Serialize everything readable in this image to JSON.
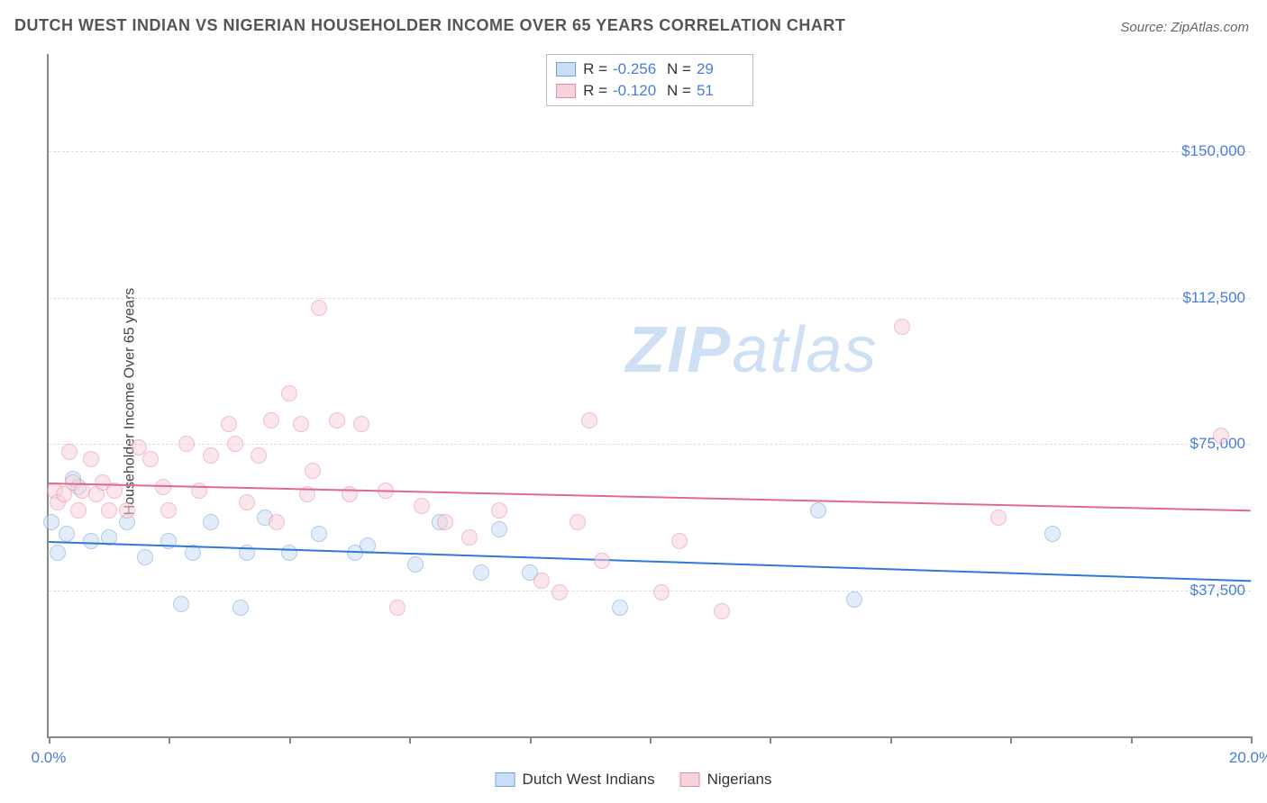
{
  "title": "DUTCH WEST INDIAN VS NIGERIAN HOUSEHOLDER INCOME OVER 65 YEARS CORRELATION CHART",
  "source_prefix": "Source: ",
  "source_name": "ZipAtlas.com",
  "watermark_a": "ZIP",
  "watermark_b": "atlas",
  "chart": {
    "type": "scatter",
    "ylabel": "Householder Income Over 65 years",
    "xlim": [
      0,
      20
    ],
    "ylim": [
      0,
      175000
    ],
    "xticks": [
      0,
      2,
      4,
      6,
      8,
      10,
      12,
      14,
      16,
      18,
      20
    ],
    "xtick_labels": {
      "0": "0.0%",
      "20": "20.0%"
    },
    "yticks": [
      37500,
      75000,
      112500,
      150000
    ],
    "ytick_labels": [
      "$37,500",
      "$75,000",
      "$112,500",
      "$150,000"
    ],
    "grid_color": "#dddddd",
    "axis_color": "#888888",
    "background_color": "#ffffff",
    "point_radius": 9,
    "point_opacity": 0.55,
    "series": [
      {
        "key": "dutch",
        "name": "Dutch West Indians",
        "fill": "#cddff6",
        "stroke": "#6f9ede",
        "line_color": "#2f78d6",
        "R_label": "R =",
        "R": "-0.256",
        "N_label": "N =",
        "N": "29",
        "trend": {
          "y_at_x0": 50000,
          "y_at_xmax": 40000
        },
        "points": [
          [
            0.05,
            55000
          ],
          [
            0.15,
            47000
          ],
          [
            0.3,
            52000
          ],
          [
            0.4,
            66000
          ],
          [
            0.5,
            64000
          ],
          [
            0.7,
            50000
          ],
          [
            1.0,
            51000
          ],
          [
            1.3,
            55000
          ],
          [
            1.6,
            46000
          ],
          [
            2.0,
            50000
          ],
          [
            2.2,
            34000
          ],
          [
            2.4,
            47000
          ],
          [
            2.7,
            55000
          ],
          [
            3.2,
            33000
          ],
          [
            3.3,
            47000
          ],
          [
            3.6,
            56000
          ],
          [
            4.0,
            47000
          ],
          [
            4.5,
            52000
          ],
          [
            5.1,
            47000
          ],
          [
            5.3,
            49000
          ],
          [
            6.1,
            44000
          ],
          [
            6.5,
            55000
          ],
          [
            7.2,
            42000
          ],
          [
            7.5,
            53000
          ],
          [
            8.0,
            42000
          ],
          [
            9.5,
            33000
          ],
          [
            12.8,
            58000
          ],
          [
            13.4,
            35000
          ],
          [
            16.7,
            52000
          ]
        ]
      },
      {
        "key": "nigerian",
        "name": "Nigerians",
        "fill": "#f7d2db",
        "stroke": "#e68aa2",
        "line_color": "#e06a8d",
        "R_label": "R =",
        "R": "-0.120",
        "N_label": "N =",
        "N": "51",
        "trend": {
          "y_at_x0": 65000,
          "y_at_xmax": 58000
        },
        "points": [
          [
            0.1,
            63000
          ],
          [
            0.15,
            60000
          ],
          [
            0.25,
            62000
          ],
          [
            0.35,
            73000
          ],
          [
            0.4,
            65000
          ],
          [
            0.5,
            58000
          ],
          [
            0.55,
            63000
          ],
          [
            0.7,
            71000
          ],
          [
            0.8,
            62000
          ],
          [
            0.9,
            65000
          ],
          [
            1.0,
            58000
          ],
          [
            1.1,
            63000
          ],
          [
            1.3,
            58000
          ],
          [
            1.5,
            74000
          ],
          [
            1.7,
            71000
          ],
          [
            1.9,
            64000
          ],
          [
            2.0,
            58000
          ],
          [
            2.3,
            75000
          ],
          [
            2.5,
            63000
          ],
          [
            2.7,
            72000
          ],
          [
            3.0,
            80000
          ],
          [
            3.1,
            75000
          ],
          [
            3.3,
            60000
          ],
          [
            3.5,
            72000
          ],
          [
            3.7,
            81000
          ],
          [
            4.0,
            88000
          ],
          [
            4.2,
            80000
          ],
          [
            4.4,
            68000
          ],
          [
            4.5,
            110000
          ],
          [
            4.8,
            81000
          ],
          [
            5.0,
            62000
          ],
          [
            5.2,
            80000
          ],
          [
            5.6,
            63000
          ],
          [
            5.8,
            33000
          ],
          [
            6.2,
            59000
          ],
          [
            6.6,
            55000
          ],
          [
            7.0,
            51000
          ],
          [
            7.5,
            58000
          ],
          [
            8.2,
            40000
          ],
          [
            8.5,
            37000
          ],
          [
            8.8,
            55000
          ],
          [
            9.0,
            81000
          ],
          [
            9.2,
            45000
          ],
          [
            10.2,
            37000
          ],
          [
            10.5,
            50000
          ],
          [
            11.2,
            32000
          ],
          [
            14.2,
            105000
          ],
          [
            15.8,
            56000
          ],
          [
            19.5,
            77000
          ],
          [
            3.8,
            55000
          ],
          [
            4.3,
            62000
          ]
        ]
      }
    ]
  }
}
